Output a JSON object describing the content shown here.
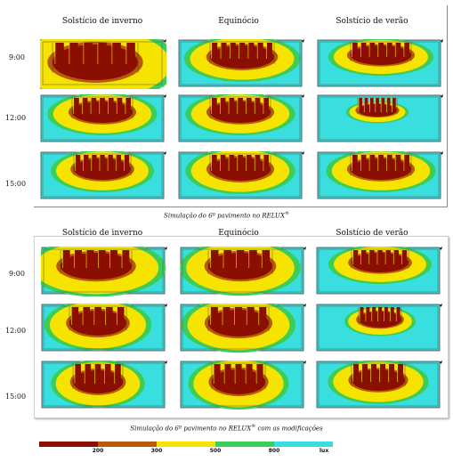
{
  "columns": [
    "Solstício de inverno",
    "Equinócio",
    "Solstício de verão"
  ],
  "rows": [
    "9:00",
    "12:00",
    "15:00"
  ],
  "caption_top": {
    "text": "Simulação do 6º pavimento no RELUX",
    "sup": "®",
    "suffix": ""
  },
  "caption_bottom": {
    "text": "Simulação do 6º pavimento no RELUX",
    "sup": "®",
    "suffix": " com as modificações"
  },
  "legend": {
    "labels": [
      "200",
      "300",
      "500",
      "800",
      "lux"
    ],
    "colors": [
      "#8b0f00",
      "#b85a0a",
      "#f6e400",
      "#3ccd58",
      "#39dede"
    ]
  },
  "colors": {
    "cyan": "#39dede",
    "green": "#3ccd58",
    "yellow": "#f6e400",
    "orange": "#b85a0a",
    "darkred": "#8b0f00"
  }
}
